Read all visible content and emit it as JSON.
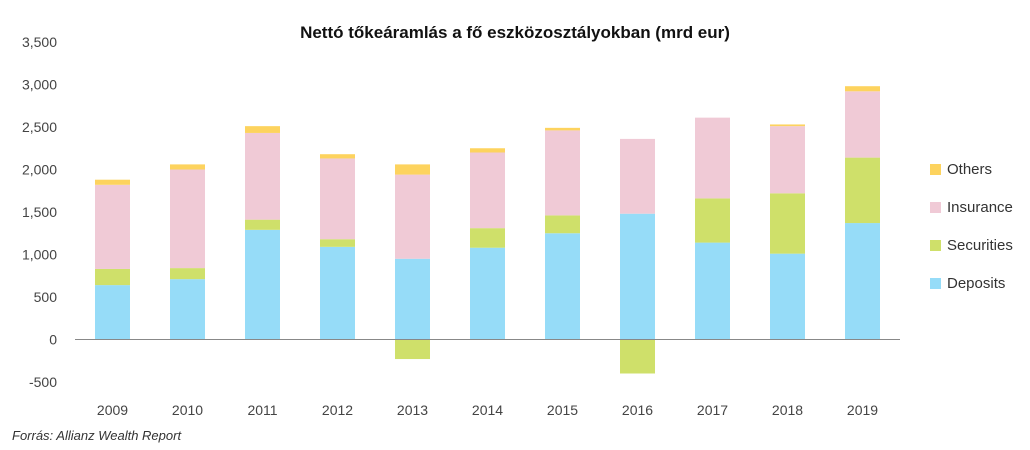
{
  "chart_data": {
    "type": "bar",
    "stacked": true,
    "title": "Nettó tőkeáramlás a fő eszközosztályokban (mrd eur)",
    "xlabel": "",
    "ylabel": "",
    "ylim": [
      -500,
      3500
    ],
    "yticks": [
      "3,500",
      "3,000",
      "2,500",
      "2,000",
      "1,500",
      "1,000",
      "500",
      "0",
      "-500"
    ],
    "ytick_values": [
      3500,
      3000,
      2500,
      2000,
      1500,
      1000,
      500,
      0,
      -500
    ],
    "grid": false,
    "legend_position": "right",
    "categories": [
      "2009",
      "2010",
      "2011",
      "2012",
      "2013",
      "2014",
      "2015",
      "2016",
      "2017",
      "2018",
      "2019"
    ],
    "series": [
      {
        "name": "Deposits",
        "color": "#96dcf8",
        "values": [
          640,
          710,
          1290,
          1090,
          950,
          1080,
          1250,
          1480,
          1140,
          1010,
          1370
        ]
      },
      {
        "name": "Securities",
        "color": "#cfe06a",
        "values": [
          190,
          130,
          120,
          90,
          -230,
          230,
          210,
          -400,
          520,
          710,
          770
        ]
      },
      {
        "name": "Insurance",
        "color": "#f0cad6",
        "values": [
          990,
          1160,
          1020,
          950,
          990,
          890,
          1000,
          880,
          950,
          790,
          780
        ]
      },
      {
        "name": "Others",
        "color": "#fdd35e",
        "values": [
          60,
          60,
          80,
          50,
          120,
          50,
          30,
          0,
          0,
          20,
          60
        ]
      }
    ],
    "legend_order": [
      "Others",
      "Insurance",
      "Securities",
      "Deposits"
    ]
  },
  "source_note": "Forrás: Allianz Wealth Report"
}
